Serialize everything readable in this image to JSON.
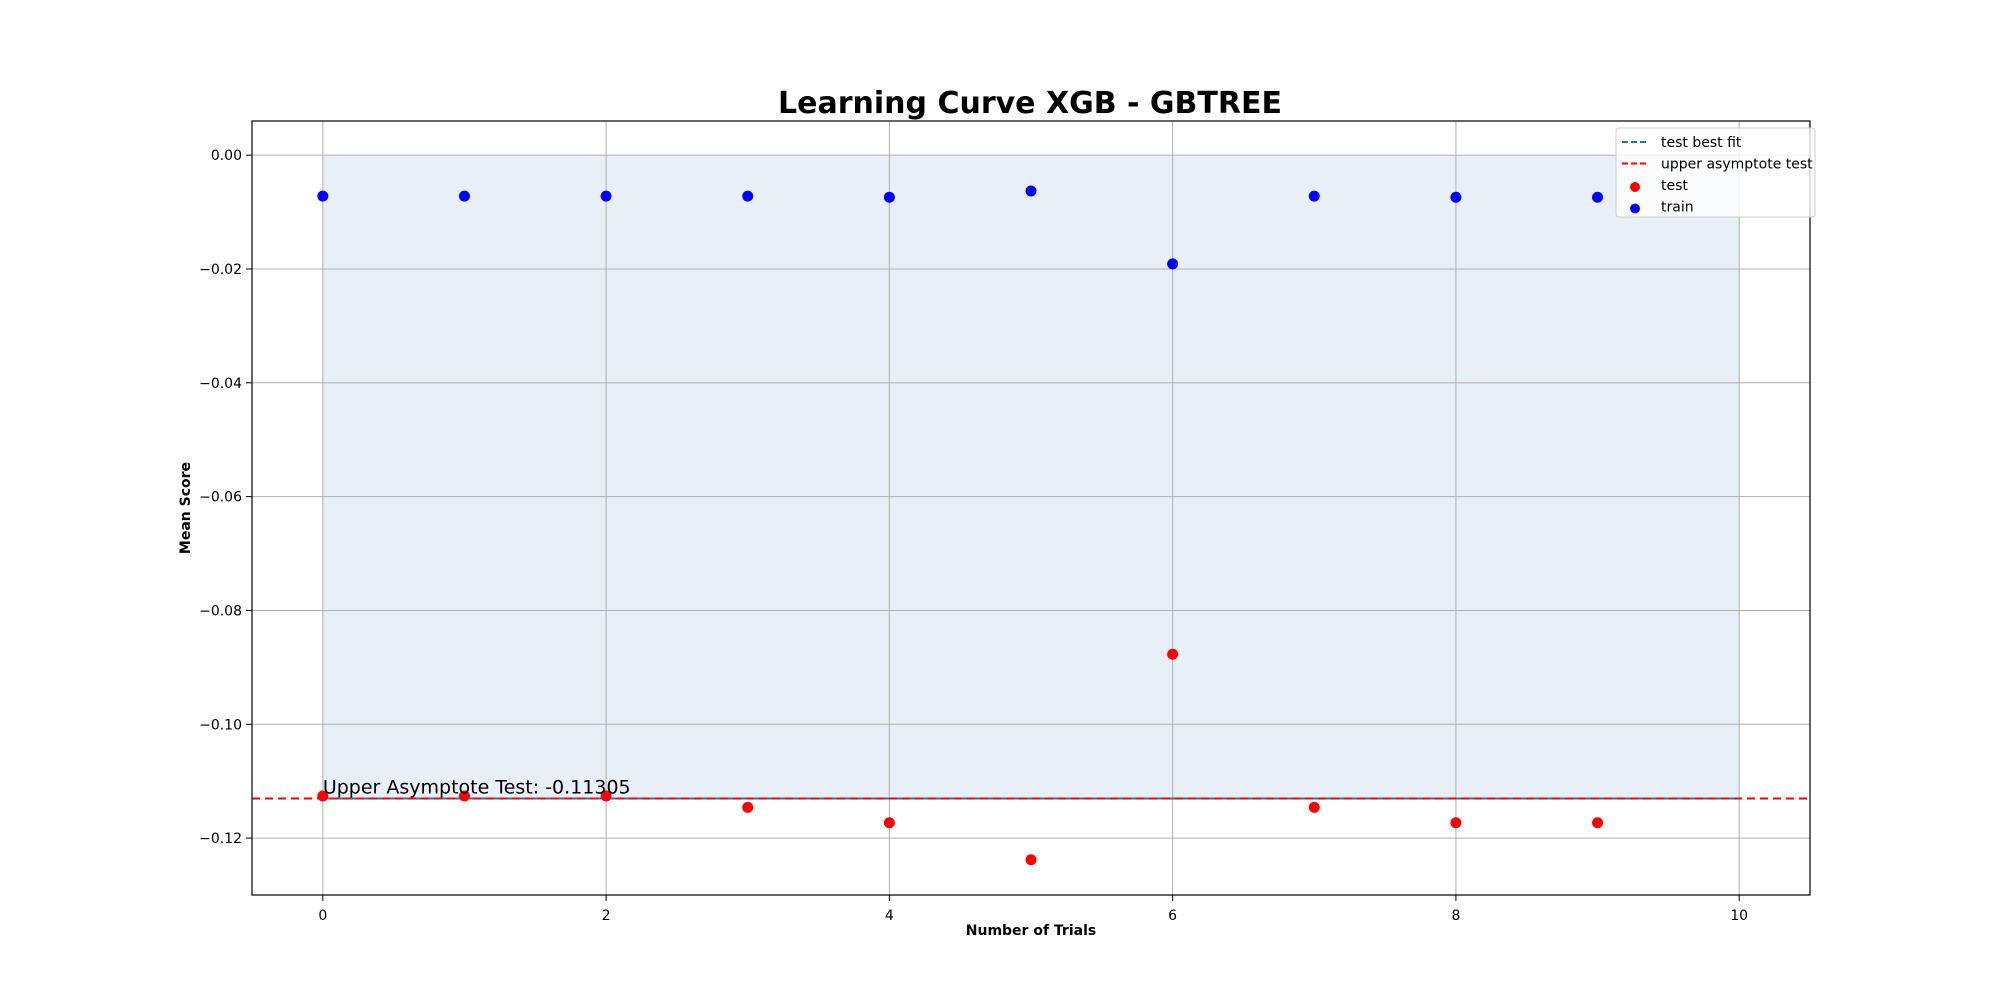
{
  "chart_data": {
    "type": "scatter",
    "title": "Learning Curve XGB - GBTREE",
    "xlabel": "Number of Trials",
    "ylabel": "Mean Score",
    "xlim": [
      -0.5,
      10.5
    ],
    "ylim": [
      -0.13,
      0.006
    ],
    "x_ticks": [
      0,
      2,
      4,
      6,
      8,
      10
    ],
    "x_tick_labels": [
      "0",
      "2",
      "4",
      "6",
      "8",
      "10"
    ],
    "y_ticks": [
      0.0,
      -0.02,
      -0.04,
      -0.06,
      -0.08,
      -0.1,
      -0.12
    ],
    "y_tick_labels": [
      "0.00",
      "−0.02",
      "−0.04",
      "−0.06",
      "−0.08",
      "−0.10",
      "−0.12"
    ],
    "grid": true,
    "legend_position": "upper right",
    "series": [
      {
        "name": "train",
        "kind": "scatter",
        "color": "#0000ff",
        "x": [
          0,
          1,
          2,
          3,
          4,
          5,
          6,
          7,
          8,
          9
        ],
        "y": [
          -0.0072,
          -0.0072,
          -0.0072,
          -0.0072,
          -0.0074,
          -0.0063,
          -0.0191,
          -0.0072,
          -0.0074,
          -0.0074
        ]
      },
      {
        "name": "test",
        "kind": "scatter",
        "color": "#ff0000",
        "x": [
          0,
          1,
          2,
          3,
          4,
          5,
          6,
          7,
          8,
          9
        ],
        "y": [
          -0.1126,
          -0.1126,
          -0.1126,
          -0.1146,
          -0.1173,
          -0.1238,
          -0.0877,
          -0.1146,
          -0.1173,
          -0.1173
        ]
      },
      {
        "name": "test best fit",
        "kind": "dashed-line",
        "color": "#1f77b4",
        "x": [
          0,
          10
        ],
        "y": [
          -0.11305,
          -0.11305
        ]
      },
      {
        "name": "upper asymptote test",
        "kind": "dashed-hline",
        "color": "#ff0000",
        "y": -0.11305
      }
    ],
    "fill_region": {
      "x": [
        0,
        10
      ],
      "y": [
        -0.11305,
        0.0
      ],
      "color": "#e8eff7"
    },
    "legend_order": [
      "test best fit",
      "upper asymptote test",
      "test",
      "train"
    ],
    "annotation": {
      "text": "Upper Asymptote Test: -0.11305",
      "x": 0,
      "y": -0.11305
    }
  }
}
